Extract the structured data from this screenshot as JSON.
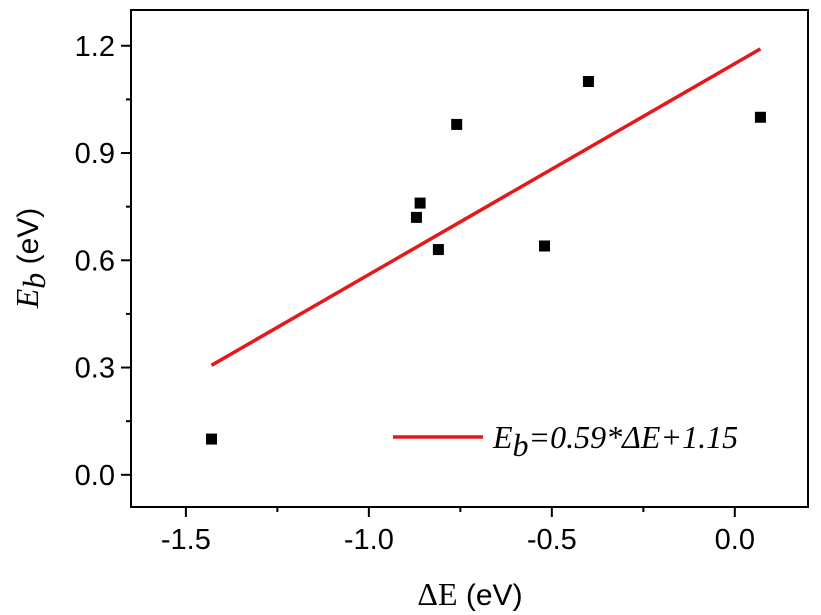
{
  "chart_data": {
    "type": "scatter",
    "xlabel": {
      "symbol": "ΔE",
      "unit": " (eV)"
    },
    "ylabel": {
      "symbol": "E",
      "subscript": "b",
      "unit": " (eV)"
    },
    "xlim": [
      -1.65,
      0.2
    ],
    "ylim": [
      -0.09,
      1.3
    ],
    "xticks": [
      -1.5,
      -1.0,
      -0.5,
      0.0
    ],
    "xtick_labels": [
      "-1.5",
      "-1.0",
      "-0.5",
      "0.0"
    ],
    "yticks": [
      0.0,
      0.3,
      0.6,
      0.9,
      1.2
    ],
    "ytick_labels": [
      "0.0",
      "0.3",
      "0.6",
      "0.9",
      "1.2"
    ],
    "grid": false,
    "legend_position": "bottom-right",
    "series": [
      {
        "kind": "scatter",
        "marker": "square",
        "color": "#000000",
        "points": [
          {
            "x": -1.43,
            "y": 0.1
          },
          {
            "x": -0.87,
            "y": 0.72
          },
          {
            "x": -0.86,
            "y": 0.76
          },
          {
            "x": -0.81,
            "y": 0.63
          },
          {
            "x": -0.76,
            "y": 0.98
          },
          {
            "x": -0.52,
            "y": 0.64
          },
          {
            "x": -0.4,
            "y": 1.1
          },
          {
            "x": 0.07,
            "y": 1.0
          }
        ]
      },
      {
        "kind": "line",
        "color": "#e31a1c",
        "slope": 0.59,
        "intercept": 1.15,
        "x_range": [
          -1.43,
          0.07
        ],
        "legend": {
          "lhs": "E",
          "lhs_sub": "b",
          "rhs": "=0.59*ΔE+1.15"
        }
      }
    ]
  }
}
